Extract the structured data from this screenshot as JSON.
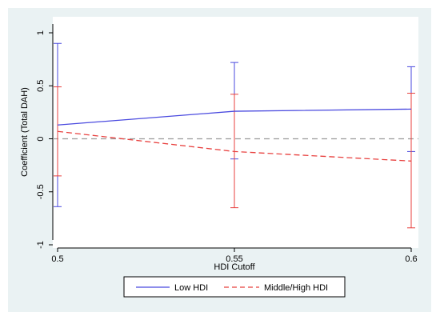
{
  "chart_data": {
    "type": "line",
    "title": "",
    "xlabel": "HDI Cutoff",
    "ylabel": "Coefficient (Total DAH)",
    "x": [
      0.5,
      0.55,
      0.6
    ],
    "x_tick_labels": [
      "0.5",
      "0.55",
      "0.6"
    ],
    "xlim": [
      0.5,
      0.6
    ],
    "y_ticks": [
      -1,
      -0.5,
      0,
      0.5,
      1
    ],
    "y_tick_labels": [
      "-1",
      "-0.5",
      "0",
      "0.5",
      "1"
    ],
    "ylim": [
      -1.05,
      1.05
    ],
    "reference_line_y": 0,
    "grid": false,
    "legend_position": "bottom",
    "series": [
      {
        "name": "Low HDI",
        "values": [
          0.13,
          0.26,
          0.28
        ],
        "ci_low": [
          -0.64,
          -0.19,
          -0.12
        ],
        "ci_high": [
          0.9,
          0.72,
          0.68
        ],
        "color": "#4a4adf",
        "line_style": "solid"
      },
      {
        "name": "Middle/High HDI",
        "values": [
          0.07,
          -0.12,
          -0.21
        ],
        "ci_low": [
          -0.35,
          -0.65,
          -0.84
        ],
        "ci_high": [
          0.49,
          0.42,
          0.43
        ],
        "color": "#e8413f",
        "line_style": "dashed"
      }
    ]
  }
}
